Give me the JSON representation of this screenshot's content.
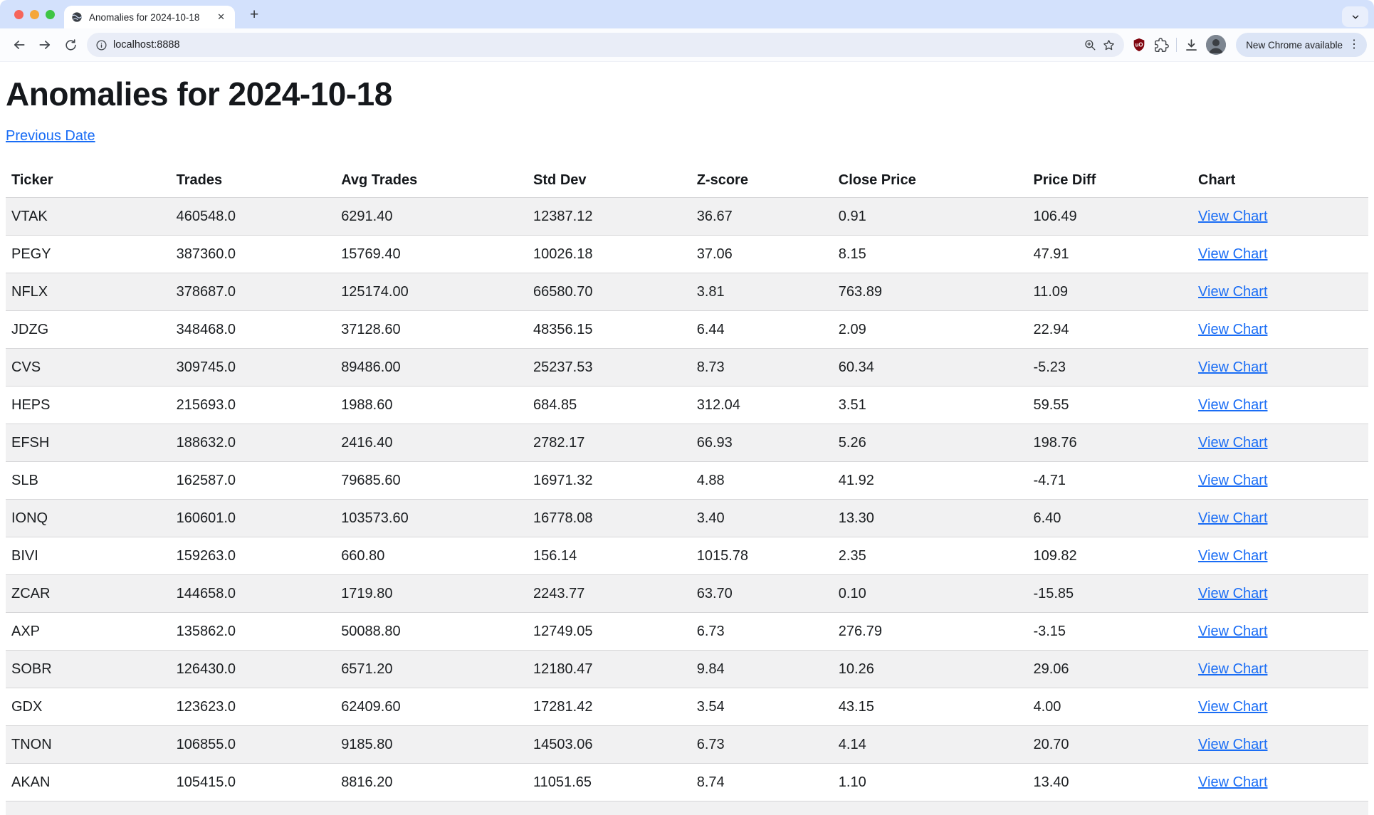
{
  "browser": {
    "tab_title": "Anomalies for 2024-10-18",
    "url": "localhost:8888",
    "update_button_label": "New Chrome available",
    "icons": {
      "traffic_lights": [
        "close",
        "minimize",
        "zoom"
      ],
      "tab_favicon": "globe-icon",
      "tab_close_glyph": "✕",
      "new_tab_glyph": "+",
      "tab_search": "chevron-down-icon",
      "nav": [
        "back-arrow-icon",
        "forward-arrow-icon",
        "reload-icon"
      ],
      "address_bar": [
        "info-icon",
        "zoom-magnifier-icon",
        "star-icon"
      ],
      "right": [
        "ublock-shield-icon",
        "extensions-puzzle-icon",
        "download-icon",
        "profile-avatar"
      ],
      "menu_glyph": "⋮"
    }
  },
  "page": {
    "title": "Anomalies for 2024-10-18",
    "previous_link_label": "Previous Date"
  },
  "table": {
    "headers": [
      "Ticker",
      "Trades",
      "Avg Trades",
      "Std Dev",
      "Z-score",
      "Close Price",
      "Price Diff",
      "Chart"
    ],
    "link_label": "View Chart",
    "rows": [
      [
        "VTAK",
        "460548.0",
        "6291.40",
        "12387.12",
        "36.67",
        "0.91",
        "106.49"
      ],
      [
        "PEGY",
        "387360.0",
        "15769.40",
        "10026.18",
        "37.06",
        "8.15",
        "47.91"
      ],
      [
        "NFLX",
        "378687.0",
        "125174.00",
        "66580.70",
        "3.81",
        "763.89",
        "11.09"
      ],
      [
        "JDZG",
        "348468.0",
        "37128.60",
        "48356.15",
        "6.44",
        "2.09",
        "22.94"
      ],
      [
        "CVS",
        "309745.0",
        "89486.00",
        "25237.53",
        "8.73",
        "60.34",
        "-5.23"
      ],
      [
        "HEPS",
        "215693.0",
        "1988.60",
        "684.85",
        "312.04",
        "3.51",
        "59.55"
      ],
      [
        "EFSH",
        "188632.0",
        "2416.40",
        "2782.17",
        "66.93",
        "5.26",
        "198.76"
      ],
      [
        "SLB",
        "162587.0",
        "79685.60",
        "16971.32",
        "4.88",
        "41.92",
        "-4.71"
      ],
      [
        "IONQ",
        "160601.0",
        "103573.60",
        "16778.08",
        "3.40",
        "13.30",
        "6.40"
      ],
      [
        "BIVI",
        "159263.0",
        "660.80",
        "156.14",
        "1015.78",
        "2.35",
        "109.82"
      ],
      [
        "ZCAR",
        "144658.0",
        "1719.80",
        "2243.77",
        "63.70",
        "0.10",
        "-15.85"
      ],
      [
        "AXP",
        "135862.0",
        "50088.80",
        "12749.05",
        "6.73",
        "276.79",
        "-3.15"
      ],
      [
        "SOBR",
        "126430.0",
        "6571.20",
        "12180.47",
        "9.84",
        "10.26",
        "29.06"
      ],
      [
        "GDX",
        "123623.0",
        "62409.60",
        "17281.42",
        "3.54",
        "43.15",
        "4.00"
      ],
      [
        "TNON",
        "106855.0",
        "9185.80",
        "14503.06",
        "6.73",
        "4.14",
        "20.70"
      ],
      [
        "AKAN",
        "105415.0",
        "8816.20",
        "11051.65",
        "8.74",
        "1.10",
        "13.40"
      ]
    ]
  },
  "colors": {
    "tab_strip": "#d3e1fc",
    "toolbar": "#fbfcfe",
    "address_pill": "#e9edf7",
    "update_pill": "#dce5f6",
    "link_blue": "#1a6df5",
    "row_stripe": "#f1f1f2",
    "row_border": "#d6d6d8",
    "text_dark": "#15181c",
    "ublock_red": "#800610"
  }
}
